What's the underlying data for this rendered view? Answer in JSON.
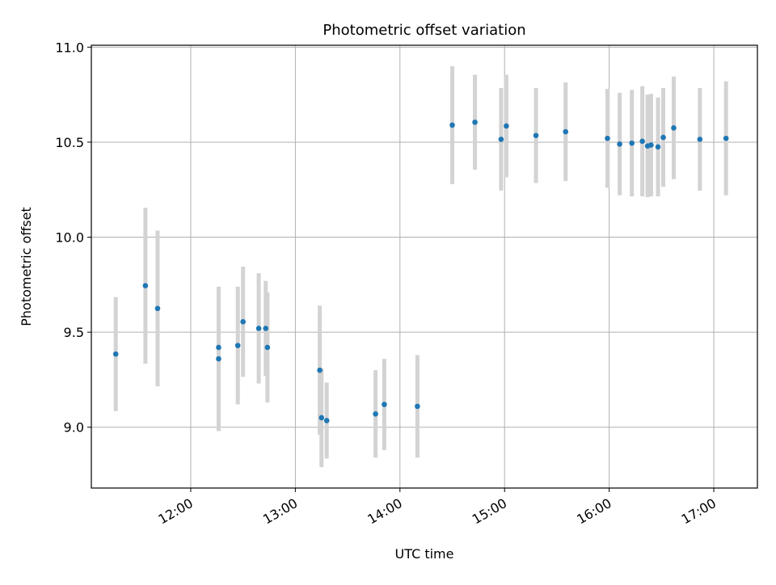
{
  "chart_data": {
    "type": "scatter",
    "title": "Photometric offset variation",
    "xlabel": "UTC time",
    "ylabel": "Photometric offset",
    "xlim": [
      "11:03",
      "17:25"
    ],
    "ylim": [
      8.68,
      11.01
    ],
    "x_ticks": [
      "12:00",
      "13:00",
      "14:00",
      "15:00",
      "16:00",
      "17:00"
    ],
    "y_ticks": [
      "9.0",
      "9.5",
      "10.0",
      "10.5",
      "11.0"
    ],
    "grid": true,
    "colors": {
      "marker": "#1f77b4",
      "errorbar": "#d3d3d3",
      "grid": "#b0b0b0"
    },
    "points": [
      {
        "t": "11:17",
        "y": 9.385,
        "err": 0.3
      },
      {
        "t": "11:34",
        "y": 9.745,
        "err": 0.41
      },
      {
        "t": "11:41",
        "y": 9.625,
        "err": 0.41
      },
      {
        "t": "12:16",
        "y": 9.42,
        "err": 0.31
      },
      {
        "t": "12:16",
        "y": 9.36,
        "err": 0.38
      },
      {
        "t": "12:27",
        "y": 9.43,
        "err": 0.31
      },
      {
        "t": "12:30",
        "y": 9.555,
        "err": 0.29
      },
      {
        "t": "12:39",
        "y": 9.52,
        "err": 0.29
      },
      {
        "t": "12:43",
        "y": 9.52,
        "err": 0.25
      },
      {
        "t": "12:44",
        "y": 9.42,
        "err": 0.29
      },
      {
        "t": "13:14",
        "y": 9.3,
        "err": 0.34
      },
      {
        "t": "13:15",
        "y": 9.05,
        "err": 0.26
      },
      {
        "t": "13:18",
        "y": 9.035,
        "err": 0.2
      },
      {
        "t": "13:46",
        "y": 9.07,
        "err": 0.23
      },
      {
        "t": "13:51",
        "y": 9.12,
        "err": 0.24
      },
      {
        "t": "14:10",
        "y": 9.11,
        "err": 0.27
      },
      {
        "t": "14:30",
        "y": 10.59,
        "err": 0.31
      },
      {
        "t": "14:43",
        "y": 10.605,
        "err": 0.25
      },
      {
        "t": "14:58",
        "y": 10.515,
        "err": 0.27
      },
      {
        "t": "15:01",
        "y": 10.585,
        "err": 0.27
      },
      {
        "t": "15:18",
        "y": 10.535,
        "err": 0.25
      },
      {
        "t": "15:35",
        "y": 10.555,
        "err": 0.26
      },
      {
        "t": "15:59",
        "y": 10.52,
        "err": 0.26
      },
      {
        "t": "16:06",
        "y": 10.49,
        "err": 0.27
      },
      {
        "t": "16:13",
        "y": 10.495,
        "err": 0.28
      },
      {
        "t": "16:19",
        "y": 10.505,
        "err": 0.29
      },
      {
        "t": "16:22",
        "y": 10.48,
        "err": 0.27
      },
      {
        "t": "16:24",
        "y": 10.485,
        "err": 0.27
      },
      {
        "t": "16:28",
        "y": 10.475,
        "err": 0.26
      },
      {
        "t": "16:31",
        "y": 10.525,
        "err": 0.26
      },
      {
        "t": "16:37",
        "y": 10.575,
        "err": 0.27
      },
      {
        "t": "16:52",
        "y": 10.515,
        "err": 0.27
      },
      {
        "t": "17:07",
        "y": 10.52,
        "err": 0.3
      }
    ]
  }
}
